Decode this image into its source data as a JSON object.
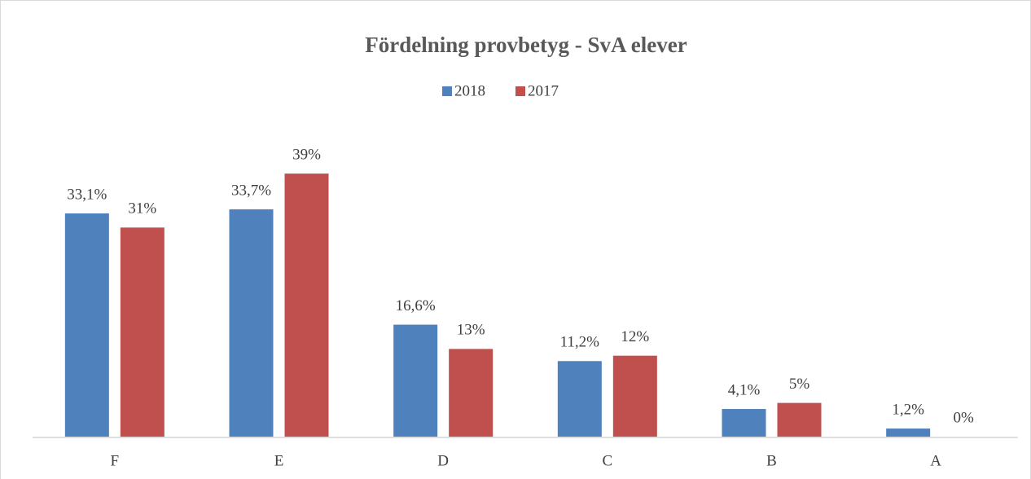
{
  "chart_data": {
    "type": "bar",
    "title": "Fördelning provbetyg - SvA elever",
    "categories": [
      "F",
      "E",
      "D",
      "C",
      "B",
      "A"
    ],
    "series": [
      {
        "name": "2018",
        "color": "#4f81bd",
        "values": [
          33.1,
          33.7,
          16.6,
          11.2,
          4.1,
          1.2
        ],
        "value_labels": [
          "33,1%",
          "33,7%",
          "16,6%",
          "11,2%",
          "4,1%",
          "1,2%"
        ]
      },
      {
        "name": "2017",
        "color": "#c0504d",
        "values": [
          31,
          39,
          13,
          12,
          5,
          0
        ],
        "value_labels": [
          "31%",
          "39%",
          "13%",
          "12%",
          "5%",
          "0%"
        ]
      }
    ]
  }
}
